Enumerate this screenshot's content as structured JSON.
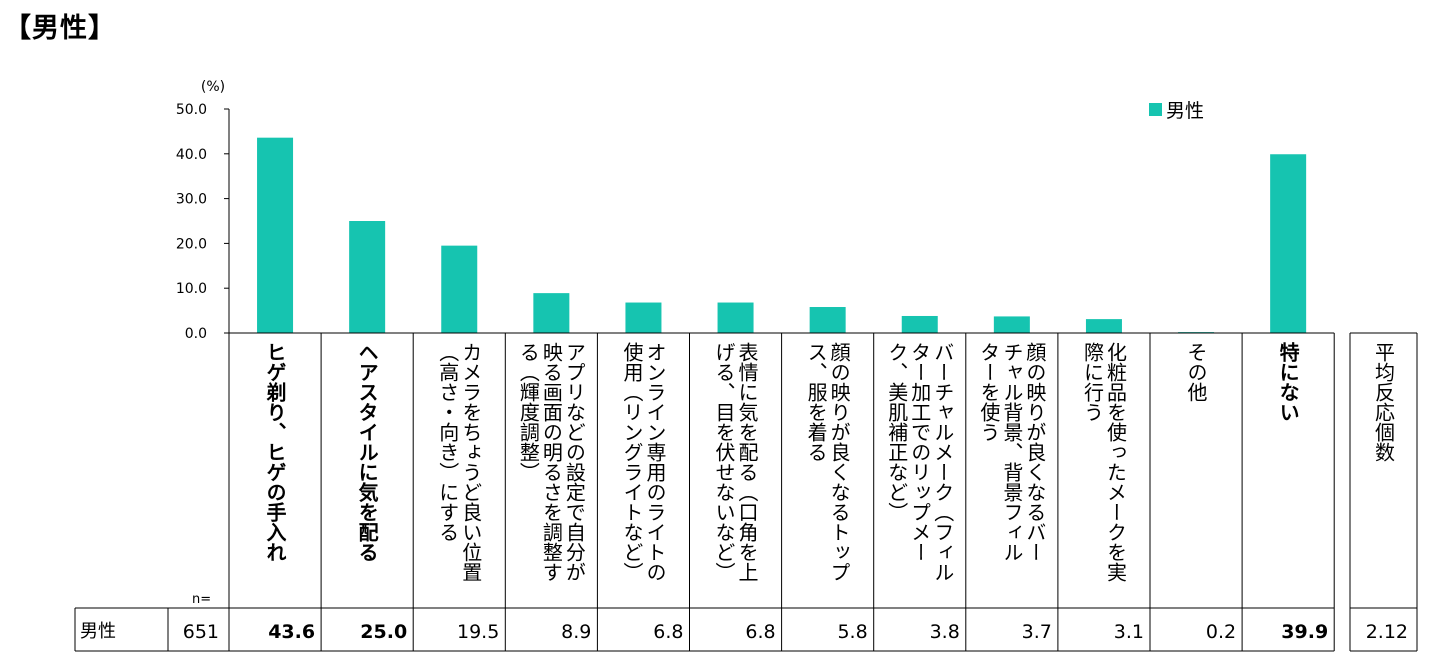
{
  "page_title": "【男性】",
  "chart_data": {
    "type": "bar",
    "y_unit": "(%)",
    "ylim": [
      0,
      50
    ],
    "yticks": [
      "50.0",
      "40.0",
      "30.0",
      "20.0",
      "10.0",
      "0.0"
    ],
    "grid": false,
    "legend": {
      "position": "top-right",
      "label": "男性"
    },
    "bar_color": "#16C4B0",
    "categories": [
      "ヒゲ剃り、ヒゲの手入れ",
      "ヘアスタイルに気を配る",
      "カメラをちょうど良い位置（高さ・向き）にする",
      "アプリなどの設定で自分が映る画面の明るさを調整する（輝度調整）",
      "オンライン専用のライトの使用（リングライトなど）",
      "表情に気を配る（口角を上げる、目を伏せないなど）",
      "顔の映りが良くなるトップス、服を着る",
      "バーチャルメーク（フィルター加工でのリップメーク、美肌補正など）",
      "顔の映りが良くなるバーチャル背景、背景フィルターを使う",
      "化粧品を使ったメークを実際に行う",
      "その他",
      "特にない"
    ],
    "category_columns": [
      [
        "ヒゲ剃り、ヒゲの手入れ"
      ],
      [
        "ヘアスタイルに気を配る"
      ],
      [
        "カメラをちょうど良い位置",
        "（高さ・向き）にする"
      ],
      [
        "アプリなどの設定で自分が",
        "映る画面の明るさを調整す",
        "る（輝度調整）"
      ],
      [
        "オンライン専用のライトの",
        "使用（リングライトなど）"
      ],
      [
        "表情に気を配る（口角を上",
        "げる、目を伏せないなど）"
      ],
      [
        "顔の映りが良くなるトップ",
        "ス、服を着る"
      ],
      [
        "バーチャルメーク（フィル",
        "ター加工でのリップメー",
        "ク、美肌補正など）"
      ],
      [
        "顔の映りが良くなるバー",
        "チャル背景、背景フィル",
        "ターを使う"
      ],
      [
        "化粧品を使ったメークを実",
        "際に行う"
      ],
      [
        "その他"
      ],
      [
        "特にない"
      ]
    ],
    "bold_categories": [
      true,
      true,
      false,
      false,
      false,
      false,
      false,
      false,
      false,
      false,
      false,
      true
    ],
    "series": [
      {
        "name": "男性",
        "values": [
          43.6,
          25.0,
          19.5,
          8.9,
          6.8,
          6.8,
          5.8,
          3.8,
          3.7,
          3.1,
          0.2,
          39.9
        ]
      }
    ],
    "table": {
      "n_label": "n=",
      "row_label": "男性",
      "n": "651",
      "values": [
        "43.6",
        "25.0",
        "19.5",
        "8.9",
        "6.8",
        "6.8",
        "5.8",
        "3.8",
        "3.7",
        "3.1",
        "0.2",
        "39.9"
      ],
      "bold_values": [
        true,
        true,
        false,
        false,
        false,
        false,
        false,
        false,
        false,
        false,
        false,
        true
      ],
      "avg_header": "平均反応個数",
      "avg_value": "2.12"
    }
  }
}
